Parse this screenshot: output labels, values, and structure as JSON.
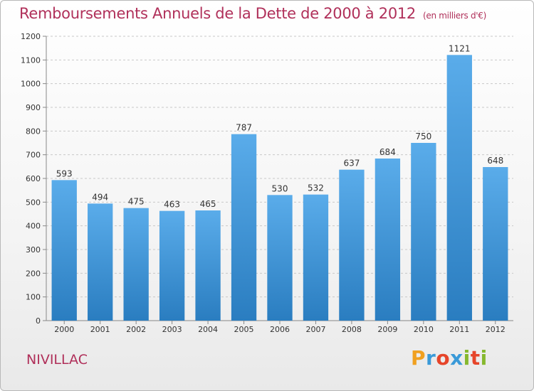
{
  "chart_data": {
    "type": "bar",
    "title": "Remboursements Annuels de la Dette de 2000 à 2012",
    "subtitle": "(en milliers d'€)",
    "categories": [
      "2000",
      "2001",
      "2002",
      "2003",
      "2004",
      "2005",
      "2006",
      "2007",
      "2008",
      "2009",
      "2010",
      "2011",
      "2012"
    ],
    "values": [
      593,
      494,
      475,
      463,
      465,
      787,
      530,
      532,
      637,
      684,
      750,
      1121,
      648
    ],
    "ylim": [
      0,
      1200
    ],
    "yticks": [
      0,
      100,
      200,
      300,
      400,
      500,
      600,
      700,
      800,
      900,
      1000,
      1100,
      1200
    ],
    "xlabel": "",
    "ylabel": "",
    "grid": true,
    "bar_color_top": "#5aacea",
    "bar_color_bottom": "#2a7dc0"
  },
  "footer": {
    "commune": "NIVILLAC",
    "brand_letters": [
      "P",
      "r",
      "o",
      "x",
      "i",
      "t",
      "i"
    ],
    "brand_colors": [
      "#f0a020",
      "#3a9ad8",
      "#e6452a",
      "#3a9ad8",
      "#86b82e",
      "#e6452a",
      "#86b82e"
    ]
  }
}
